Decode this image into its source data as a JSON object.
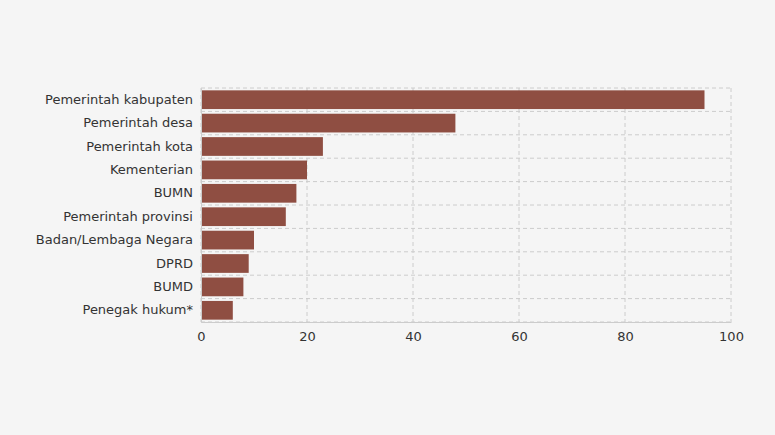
{
  "chart_data": {
    "type": "bar",
    "orientation": "horizontal",
    "categories": [
      "Pemerintah kabupaten",
      "Pemerintah desa",
      "Pemerintah kota",
      "Kementerian",
      "BUMN",
      "Pemerintah provinsi",
      "Badan/Lembaga Negara",
      "DPRD",
      "BUMD",
      "Penegak hukum*"
    ],
    "values": [
      95,
      48,
      23,
      20,
      18,
      16,
      10,
      9,
      8,
      6
    ],
    "color": "#8f4e42",
    "xlim": [
      0,
      100
    ],
    "xticks": [
      0,
      20,
      40,
      60,
      80,
      100
    ],
    "grid": true
  }
}
